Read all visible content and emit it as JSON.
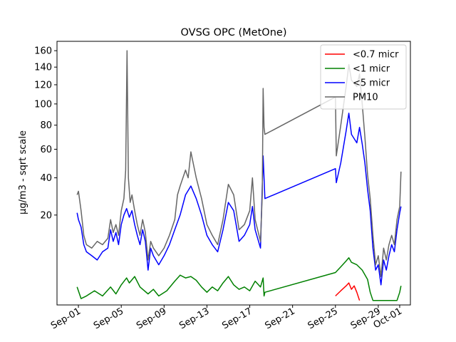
{
  "chart_data": {
    "type": "line",
    "title": "OVSG OPC (MetOne)",
    "xlabel": "",
    "ylabel": "µg/m3 - sqrt scale",
    "y_scale": "sqrt",
    "ylim": [
      0,
      172
    ],
    "xlim": [
      "2023-08-30T00:00",
      "2023-10-02T00:00"
    ],
    "x_ticks": [
      {
        "label": "Sep-01",
        "date": "2023-09-01"
      },
      {
        "label": "Sep-05",
        "date": "2023-09-05"
      },
      {
        "label": "Sep-09",
        "date": "2023-09-09"
      },
      {
        "label": "Sep-13",
        "date": "2023-09-13"
      },
      {
        "label": "Sep-17",
        "date": "2023-09-17"
      },
      {
        "label": "Sep-21",
        "date": "2023-09-21"
      },
      {
        "label": "Sep-25",
        "date": "2023-09-25"
      },
      {
        "label": "Sep-29",
        "date": "2023-09-29"
      },
      {
        "label": "Oct-01",
        "date": "2023-10-01"
      }
    ],
    "y_ticks": [
      {
        "label": "20",
        "value": 20
      },
      {
        "label": "40",
        "value": 40
      },
      {
        "label": "60",
        "value": 60
      },
      {
        "label": "80",
        "value": 80
      },
      {
        "label": "100",
        "value": 100
      },
      {
        "label": "120",
        "value": 120
      },
      {
        "label": "140",
        "value": 140
      },
      {
        "label": "160",
        "value": 160
      }
    ],
    "legend_position": "top-right",
    "grid": false,
    "series": [
      {
        "name": "<0.7 micr",
        "color": "#ff0000",
        "points": [
          [
            "2023-09-25T00:00",
            0.2
          ],
          [
            "2023-09-25T12:00",
            0.5
          ],
          [
            "2023-09-26T00:00",
            0.9
          ],
          [
            "2023-09-26T06:00",
            1.2
          ],
          [
            "2023-09-26T12:00",
            0.6
          ],
          [
            "2023-09-26T18:00",
            0.9
          ],
          [
            "2023-09-27T00:00",
            0.4
          ],
          [
            "2023-09-27T06:00",
            0.05
          ]
        ]
      },
      {
        "name": "<1 micr",
        "color": "#008000",
        "points": [
          [
            "2023-08-31T21:00",
            0.8
          ],
          [
            "2023-09-01T06:00",
            0.1
          ],
          [
            "2023-09-01T18:00",
            0.2
          ],
          [
            "2023-09-02T12:00",
            0.5
          ],
          [
            "2023-09-03T06:00",
            0.2
          ],
          [
            "2023-09-04T00:00",
            0.8
          ],
          [
            "2023-09-04T12:00",
            0.3
          ],
          [
            "2023-09-05T00:00",
            1.0
          ],
          [
            "2023-09-05T12:00",
            1.8
          ],
          [
            "2023-09-05T18:00",
            1.2
          ],
          [
            "2023-09-06T06:00",
            2.0
          ],
          [
            "2023-09-06T18:00",
            0.8
          ],
          [
            "2023-09-07T12:00",
            0.3
          ],
          [
            "2023-09-08T00:00",
            0.6
          ],
          [
            "2023-09-08T12:00",
            0.2
          ],
          [
            "2023-09-09T06:00",
            0.5
          ],
          [
            "2023-09-10T00:00",
            1.4
          ],
          [
            "2023-09-10T12:00",
            2.2
          ],
          [
            "2023-09-11T00:00",
            1.8
          ],
          [
            "2023-09-11T12:00",
            2.0
          ],
          [
            "2023-09-12T00:00",
            1.5
          ],
          [
            "2023-09-12T12:00",
            0.8
          ],
          [
            "2023-09-13T00:00",
            0.4
          ],
          [
            "2023-09-13T12:00",
            0.8
          ],
          [
            "2023-09-14T00:00",
            0.5
          ],
          [
            "2023-09-14T12:00",
            1.2
          ],
          [
            "2023-09-15T00:00",
            2.0
          ],
          [
            "2023-09-15T12:00",
            1.0
          ],
          [
            "2023-09-16T00:00",
            0.6
          ],
          [
            "2023-09-16T12:00",
            0.8
          ],
          [
            "2023-09-17T00:00",
            0.5
          ],
          [
            "2023-09-17T12:00",
            1.4
          ],
          [
            "2023-09-18T00:00",
            0.8
          ],
          [
            "2023-09-18T06:00",
            1.8
          ],
          [
            "2023-09-18T08:00",
            0.2
          ],
          [
            "2023-09-18T10:00",
            0.4
          ],
          [
            "2023-09-25T00:00",
            2.6
          ],
          [
            "2023-09-25T12:00",
            3.6
          ],
          [
            "2023-09-26T00:00",
            4.8
          ],
          [
            "2023-09-26T06:00",
            5.5
          ],
          [
            "2023-09-26T12:00",
            4.5
          ],
          [
            "2023-09-27T00:00",
            4.0
          ],
          [
            "2023-09-27T12:00",
            3.0
          ],
          [
            "2023-09-28T00:00",
            1.6
          ],
          [
            "2023-09-28T06:00",
            0.4
          ],
          [
            "2023-09-28T12:00",
            0.05
          ],
          [
            "2023-09-29T00:00",
            0.05
          ],
          [
            "2023-09-30T00:00",
            0.05
          ],
          [
            "2023-09-30T18:00",
            0.05
          ],
          [
            "2023-10-01T00:00",
            0.4
          ],
          [
            "2023-10-01T03:00",
            0.9
          ]
        ]
      },
      {
        "name": "<5 micr",
        "color": "#0000ff",
        "points": [
          [
            "2023-08-31T21:00",
            21
          ],
          [
            "2023-09-01T00:00",
            18
          ],
          [
            "2023-09-01T06:00",
            15
          ],
          [
            "2023-09-01T12:00",
            9
          ],
          [
            "2023-09-01T18:00",
            7
          ],
          [
            "2023-09-02T06:00",
            6
          ],
          [
            "2023-09-02T18:00",
            5
          ],
          [
            "2023-09-03T06:00",
            7
          ],
          [
            "2023-09-03T18:00",
            8
          ],
          [
            "2023-09-04T00:00",
            14
          ],
          [
            "2023-09-04T06:00",
            10
          ],
          [
            "2023-09-04T12:00",
            13
          ],
          [
            "2023-09-04T18:00",
            9
          ],
          [
            "2023-09-05T00:00",
            16
          ],
          [
            "2023-09-05T06:00",
            20
          ],
          [
            "2023-09-05T12:00",
            23
          ],
          [
            "2023-09-05T18:00",
            19
          ],
          [
            "2023-09-06T00:00",
            22
          ],
          [
            "2023-09-06T06:00",
            16
          ],
          [
            "2023-09-06T12:00",
            12
          ],
          [
            "2023-09-06T18:00",
            9
          ],
          [
            "2023-09-07T00:00",
            14
          ],
          [
            "2023-09-07T06:00",
            10
          ],
          [
            "2023-09-07T12:00",
            3
          ],
          [
            "2023-09-07T18:00",
            8
          ],
          [
            "2023-09-08T00:00",
            6
          ],
          [
            "2023-09-08T12:00",
            4
          ],
          [
            "2023-09-09T00:00",
            6
          ],
          [
            "2023-09-09T12:00",
            9
          ],
          [
            "2023-09-10T00:00",
            14
          ],
          [
            "2023-09-10T12:00",
            20
          ],
          [
            "2023-09-11T00:00",
            30
          ],
          [
            "2023-09-11T12:00",
            35
          ],
          [
            "2023-09-12T00:00",
            28
          ],
          [
            "2023-09-12T12:00",
            20
          ],
          [
            "2023-09-13T00:00",
            12
          ],
          [
            "2023-09-13T12:00",
            9
          ],
          [
            "2023-09-14T00:00",
            7
          ],
          [
            "2023-09-14T12:00",
            14
          ],
          [
            "2023-09-15T00:00",
            26
          ],
          [
            "2023-09-15T12:00",
            22
          ],
          [
            "2023-09-16T00:00",
            10
          ],
          [
            "2023-09-16T12:00",
            12
          ],
          [
            "2023-09-17T00:00",
            16
          ],
          [
            "2023-09-17T06:00",
            24
          ],
          [
            "2023-09-17T12:00",
            14
          ],
          [
            "2023-09-18T00:00",
            8
          ],
          [
            "2023-09-18T06:00",
            55
          ],
          [
            "2023-09-18T10:00",
            28
          ],
          [
            "2023-09-25T00:00",
            46
          ],
          [
            "2023-09-25T02:00",
            37
          ],
          [
            "2023-09-25T12:00",
            50
          ],
          [
            "2023-09-26T00:00",
            75
          ],
          [
            "2023-09-26T06:00",
            91
          ],
          [
            "2023-09-26T12:00",
            72
          ],
          [
            "2023-09-27T00:00",
            65
          ],
          [
            "2023-09-27T06:00",
            78
          ],
          [
            "2023-09-27T12:00",
            64
          ],
          [
            "2023-09-27T18:00",
            50
          ],
          [
            "2023-09-28T00:00",
            33
          ],
          [
            "2023-09-28T06:00",
            22
          ],
          [
            "2023-09-28T12:00",
            8
          ],
          [
            "2023-09-28T18:00",
            3
          ],
          [
            "2023-09-29T00:00",
            4
          ],
          [
            "2023-09-29T06:00",
            1
          ],
          [
            "2023-09-29T12:00",
            5
          ],
          [
            "2023-09-29T18:00",
            3
          ],
          [
            "2023-09-30T00:00",
            6
          ],
          [
            "2023-09-30T06:00",
            9
          ],
          [
            "2023-09-30T12:00",
            7
          ],
          [
            "2023-09-30T18:00",
            14
          ],
          [
            "2023-10-01T00:00",
            21
          ],
          [
            "2023-10-01T03:00",
            24
          ]
        ]
      },
      {
        "name": "PM10",
        "color": "#666666",
        "points": [
          [
            "2023-08-31T21:00",
            30
          ],
          [
            "2023-09-01T00:00",
            32
          ],
          [
            "2023-09-01T06:00",
            22
          ],
          [
            "2023-09-01T12:00",
            12
          ],
          [
            "2023-09-01T18:00",
            9
          ],
          [
            "2023-09-02T06:00",
            8
          ],
          [
            "2023-09-02T18:00",
            10
          ],
          [
            "2023-09-03T06:00",
            9
          ],
          [
            "2023-09-03T18:00",
            11
          ],
          [
            "2023-09-04T00:00",
            18
          ],
          [
            "2023-09-04T06:00",
            13
          ],
          [
            "2023-09-04T12:00",
            16
          ],
          [
            "2023-09-04T18:00",
            12
          ],
          [
            "2023-09-05T00:00",
            22
          ],
          [
            "2023-09-05T06:00",
            28
          ],
          [
            "2023-09-05T10:00",
            45
          ],
          [
            "2023-09-05T13:00",
            160
          ],
          [
            "2023-09-05T16:00",
            40
          ],
          [
            "2023-09-05T20:00",
            26
          ],
          [
            "2023-09-06T00:00",
            30
          ],
          [
            "2023-09-06T06:00",
            22
          ],
          [
            "2023-09-06T12:00",
            16
          ],
          [
            "2023-09-06T18:00",
            12
          ],
          [
            "2023-09-07T00:00",
            18
          ],
          [
            "2023-09-07T06:00",
            13
          ],
          [
            "2023-09-07T12:00",
            5
          ],
          [
            "2023-09-07T18:00",
            10
          ],
          [
            "2023-09-08T00:00",
            8
          ],
          [
            "2023-09-08T12:00",
            6
          ],
          [
            "2023-09-09T00:00",
            8
          ],
          [
            "2023-09-09T12:00",
            12
          ],
          [
            "2023-09-10T00:00",
            18
          ],
          [
            "2023-09-10T06:00",
            30
          ],
          [
            "2023-09-10T12:00",
            35
          ],
          [
            "2023-09-11T00:00",
            45
          ],
          [
            "2023-09-11T06:00",
            40
          ],
          [
            "2023-09-11T12:00",
            58
          ],
          [
            "2023-09-12T00:00",
            40
          ],
          [
            "2023-09-12T12:00",
            28
          ],
          [
            "2023-09-13T00:00",
            16
          ],
          [
            "2023-09-13T12:00",
            12
          ],
          [
            "2023-09-14T00:00",
            9
          ],
          [
            "2023-09-14T12:00",
            18
          ],
          [
            "2023-09-15T00:00",
            36
          ],
          [
            "2023-09-15T12:00",
            30
          ],
          [
            "2023-09-16T00:00",
            14
          ],
          [
            "2023-09-16T12:00",
            16
          ],
          [
            "2023-09-17T00:00",
            22
          ],
          [
            "2023-09-17T06:00",
            40
          ],
          [
            "2023-09-17T12:00",
            18
          ],
          [
            "2023-09-18T00:00",
            10
          ],
          [
            "2023-09-18T04:00",
            30
          ],
          [
            "2023-09-18T06:00",
            116
          ],
          [
            "2023-09-18T08:00",
            78
          ],
          [
            "2023-09-18T10:00",
            72
          ],
          [
            "2023-09-25T00:00",
            107
          ],
          [
            "2023-09-25T02:00",
            55
          ],
          [
            "2023-09-25T12:00",
            80
          ],
          [
            "2023-09-26T00:00",
            118
          ],
          [
            "2023-09-26T06:00",
            143
          ],
          [
            "2023-09-26T12:00",
            125
          ],
          [
            "2023-09-27T00:00",
            118
          ],
          [
            "2023-09-27T06:00",
            132
          ],
          [
            "2023-09-27T12:00",
            100
          ],
          [
            "2023-09-27T18:00",
            70
          ],
          [
            "2023-09-28T00:00",
            42
          ],
          [
            "2023-09-28T06:00",
            28
          ],
          [
            "2023-09-28T12:00",
            12
          ],
          [
            "2023-09-28T18:00",
            4
          ],
          [
            "2023-09-29T00:00",
            6
          ],
          [
            "2023-09-29T06:00",
            2
          ],
          [
            "2023-09-29T12:00",
            8
          ],
          [
            "2023-09-29T18:00",
            5
          ],
          [
            "2023-09-30T00:00",
            9
          ],
          [
            "2023-09-30T06:00",
            12
          ],
          [
            "2023-09-30T12:00",
            9
          ],
          [
            "2023-09-30T18:00",
            18
          ],
          [
            "2023-10-01T00:00",
            24
          ],
          [
            "2023-10-01T03:00",
            44
          ]
        ]
      }
    ]
  }
}
